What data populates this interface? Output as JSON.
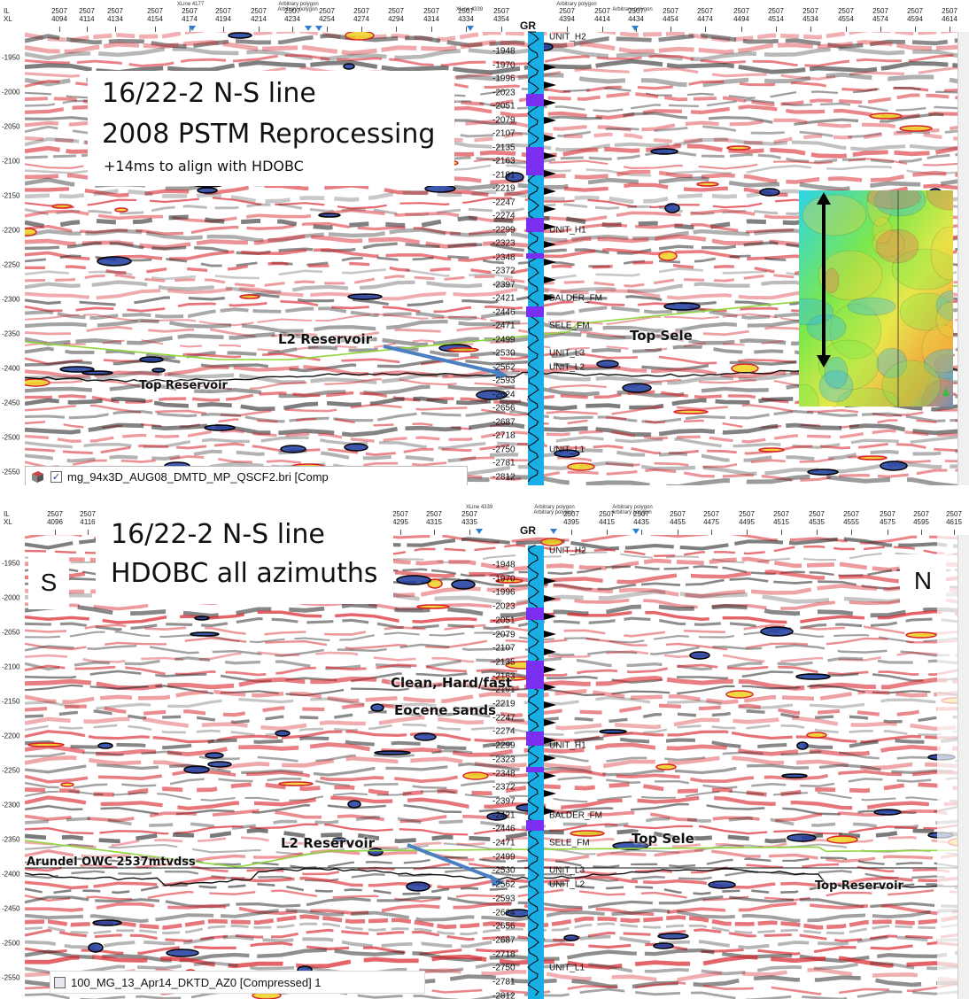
{
  "colors": {
    "seismic_positive": "#d8222a",
    "seismic_negative": "#222222",
    "seismic_strong_positive": "#f0d020",
    "seismic_strong_negative": "#1a3a9c",
    "horizon_top_sele": "#8fd63a",
    "horizon_top_reservoir": "#111111",
    "well_track": "#19aee6",
    "well_fill": "#7a2ff0",
    "arrow": "#4a7fc2"
  },
  "top_panel": {
    "il_label": "IL",
    "xl_label": "XL",
    "xl_ticks": [
      {
        "top": "2507",
        "bot": "4094"
      },
      {
        "top": "2507",
        "bot": "4114"
      },
      {
        "top": "2507",
        "bot": "4134"
      },
      {
        "top": "2507",
        "bot": "4154"
      },
      {
        "top": "2507",
        "bot": "4174"
      },
      {
        "top": "2507",
        "bot": "4194"
      },
      {
        "top": "2507",
        "bot": "4214"
      },
      {
        "top": "2507",
        "bot": "4234"
      },
      {
        "top": "2507",
        "bot": "4254"
      },
      {
        "top": "2507",
        "bot": "4274"
      },
      {
        "top": "2507",
        "bot": "4294"
      },
      {
        "top": "2507",
        "bot": "4314"
      },
      {
        "top": "2507",
        "bot": "4334"
      },
      {
        "top": "2507",
        "bot": "4354"
      },
      {
        "top": "2507",
        "bot": "4394"
      },
      {
        "top": "2507",
        "bot": "4414"
      },
      {
        "top": "2507",
        "bot": "4434"
      },
      {
        "top": "2507",
        "bot": "4454"
      },
      {
        "top": "2507",
        "bot": "4474"
      },
      {
        "top": "2507",
        "bot": "4494"
      },
      {
        "top": "2507",
        "bot": "4514"
      },
      {
        "top": "2507",
        "bot": "4534"
      },
      {
        "top": "2507",
        "bot": "4554"
      },
      {
        "top": "2507",
        "bot": "4574"
      },
      {
        "top": "2507",
        "bot": "4594"
      },
      {
        "top": "2507",
        "bot": "4614"
      }
    ],
    "markers": [
      "XLine 4177",
      "Arbitrary polygon",
      "Arbitrary polygon",
      "XLine 4339",
      "Arbitrary polygon",
      "Arbitrary polygon"
    ],
    "y_ticks": [
      "-1950",
      "-2000",
      "-2050",
      "-2100",
      "-2150",
      "-2200",
      "-2250",
      "-2300",
      "-2350",
      "-2400",
      "-2450",
      "-2500",
      "-2550"
    ],
    "title_line1": "16/22-2 N-S line",
    "title_line2": "2008 PSTM Reprocessing",
    "title_line3": "+14ms to  align with HDOBC",
    "annot_l2": "L2 Reservoir",
    "annot_top_sele": "Top Sele",
    "annot_top_reservoir": "Top Reservoir",
    "layer_name": "mg_94x3D_AUG08_DMTD_MP_QSCF2.bri [Comp",
    "layer_checked": "✓"
  },
  "bottom_panel": {
    "il_label": "IL",
    "xl_label": "XL",
    "xl_ticks": [
      {
        "top": "2507",
        "bot": "4096"
      },
      {
        "top": "2507",
        "bot": "4116"
      },
      {
        "top": "2507",
        "bot": "4295"
      },
      {
        "top": "2507",
        "bot": "4315"
      },
      {
        "top": "2507",
        "bot": "4335"
      },
      {
        "top": "2507",
        "bot": "4395"
      },
      {
        "top": "2507",
        "bot": "4415"
      },
      {
        "top": "2507",
        "bot": "4435"
      },
      {
        "top": "2507",
        "bot": "4455"
      },
      {
        "top": "2507",
        "bot": "4475"
      },
      {
        "top": "2507",
        "bot": "4495"
      },
      {
        "top": "2507",
        "bot": "4515"
      },
      {
        "top": "2507",
        "bot": "4535"
      },
      {
        "top": "2507",
        "bot": "4555"
      },
      {
        "top": "2507",
        "bot": "4575"
      },
      {
        "top": "2507",
        "bot": "4595"
      },
      {
        "top": "2507",
        "bot": "4615"
      }
    ],
    "markers": [
      "XLine 4339",
      "Arbitrary polygon",
      "Arbitrary polygon",
      "Arbitrary polygon",
      "Arbitrary polygon"
    ],
    "y_ticks": [
      "-1950",
      "-2000",
      "-2050",
      "-2100",
      "-2150",
      "-2200",
      "-2250",
      "-2300",
      "-2350",
      "-2400",
      "-2450",
      "-2500",
      "-2550"
    ],
    "title_line1": "16/22-2 N-S line",
    "title_line2": "HDOBC all azimuths",
    "dir_south": "S",
    "dir_north": "N",
    "annot_eocene1": "Clean, Hard/fast",
    "annot_eocene2": "Eocene sands",
    "annot_l2": "L2 Reservoir",
    "annot_top_sele": "Top Sele",
    "annot_owc": "Arundel OWC 2537mtvdss",
    "annot_top_reservoir": "Top Reservoir",
    "layer_name": "100_MG_13_Apr14_DKTD_AZ0 [Compressed] 1"
  },
  "well": {
    "header": "GR",
    "depths": [
      "1948",
      "1970",
      "1996",
      "2023",
      "2051",
      "2079",
      "2107",
      "2135",
      "2163",
      "2191",
      "2219",
      "2247",
      "2274",
      "2299",
      "2323",
      "2348",
      "2372",
      "2397",
      "2421",
      "2446",
      "2471",
      "2499",
      "2530",
      "2562",
      "2593",
      "2624",
      "2656",
      "2687",
      "2718",
      "2750",
      "2781",
      "2812"
    ],
    "units_top": [
      {
        "name": "UNIT_H2",
        "idx": 0
      },
      {
        "name": "UNIT_H1",
        "idx": 13
      },
      {
        "name": "BALDER_FM",
        "idx": 18
      },
      {
        "name": "SELE_FM",
        "idx": 20
      },
      {
        "name": "UNIT_L3",
        "idx": 22
      },
      {
        "name": "UNIT_L2",
        "idx": 23
      },
      {
        "name": "UNIT_L1",
        "idx": 29
      }
    ]
  }
}
